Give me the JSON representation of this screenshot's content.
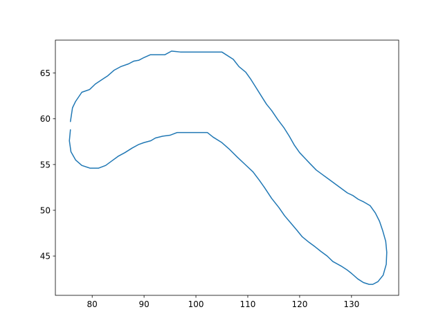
{
  "chart_data": {
    "type": "line",
    "title": "",
    "xlabel": "",
    "ylabel": "",
    "xlim": [
      72.9,
      139.1
    ],
    "ylim": [
      40.7,
      68.6
    ],
    "xticks": [
      80,
      90,
      100,
      110,
      120,
      130
    ],
    "yticks": [
      45,
      50,
      55,
      60,
      65
    ],
    "xtick_labels": [
      "80",
      "90",
      "100",
      "110",
      "120",
      "130"
    ],
    "ytick_labels": [
      "45",
      "50",
      "55",
      "60",
      "65"
    ],
    "grid": false,
    "series": [
      {
        "color": "#1f77b4",
        "x": [
          75.8,
          76.2,
          76.8,
          78.0,
          79.5,
          80.6,
          82.2,
          83.0,
          84.2,
          85.5,
          87.0,
          88.0,
          89.0,
          90.0,
          91.2,
          93.0,
          94.0,
          95.3,
          97.0,
          98.0,
          100.0,
          102.0,
          104.7,
          105.0,
          107.2,
          108.3,
          109.6,
          110.6,
          111.6,
          112.6,
          113.6,
          114.6,
          115.8,
          117.0,
          118.0,
          119.0,
          120.0,
          121.0,
          122.0,
          123.2,
          124.4,
          125.6,
          126.8,
          128.0,
          129.2,
          130.3,
          131.3,
          132.4,
          133.6,
          134.6,
          135.4,
          136.0,
          136.6,
          136.8,
          136.7,
          136.1,
          135.1,
          134.1,
          133.4,
          132.3,
          131.2,
          130.0,
          129.1,
          128.0,
          126.4,
          125.3,
          124.1,
          123.0,
          121.8,
          120.5,
          119.5,
          118.3,
          117.1,
          116.0,
          114.6,
          113.2,
          112.2,
          111.0,
          109.5,
          108.0,
          106.4,
          105.0,
          103.3,
          102.2,
          100.5,
          98.5,
          96.4,
          95.0,
          93.6,
          92.2,
          91.3,
          90.0,
          89.0,
          87.7,
          86.3,
          85.0,
          83.8,
          82.6,
          81.2,
          79.6,
          78.0,
          76.8,
          75.9,
          75.6,
          75.8
        ],
        "y": [
          59.7,
          61.2,
          61.9,
          62.9,
          63.2,
          63.8,
          64.4,
          64.7,
          65.3,
          65.7,
          66.0,
          66.3,
          66.4,
          66.7,
          67.0,
          67.0,
          67.0,
          67.4,
          67.3,
          67.3,
          67.3,
          67.3,
          67.3,
          67.3,
          66.5,
          65.7,
          65.1,
          64.3,
          63.4,
          62.5,
          61.6,
          60.9,
          59.9,
          59.0,
          58.1,
          57.1,
          56.3,
          55.7,
          55.1,
          54.4,
          53.9,
          53.4,
          52.9,
          52.4,
          51.9,
          51.6,
          51.2,
          50.9,
          50.5,
          49.7,
          48.8,
          47.8,
          46.6,
          45.4,
          44.1,
          42.9,
          42.2,
          41.9,
          41.9,
          42.1,
          42.5,
          43.1,
          43.5,
          43.9,
          44.4,
          45.0,
          45.5,
          46.0,
          46.5,
          47.1,
          47.8,
          48.6,
          49.4,
          50.3,
          51.3,
          52.5,
          53.3,
          54.2,
          55.0,
          55.8,
          56.7,
          57.4,
          58.0,
          58.5,
          58.5,
          58.5,
          58.5,
          58.2,
          58.1,
          57.9,
          57.6,
          57.4,
          57.2,
          56.8,
          56.3,
          55.9,
          55.4,
          54.9,
          54.6,
          54.6,
          54.9,
          55.5,
          56.4,
          57.6,
          58.8
        ]
      }
    ]
  }
}
